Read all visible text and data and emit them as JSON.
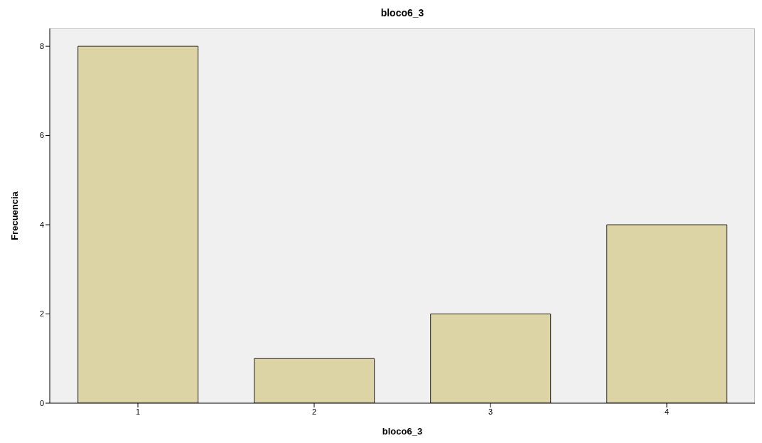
{
  "chart_data": {
    "type": "bar",
    "title": "bloco6_3",
    "xlabel": "bloco6_3",
    "ylabel": "Frecuencia",
    "categories": [
      "1",
      "2",
      "3",
      "4"
    ],
    "values": [
      8,
      1,
      2,
      4
    ],
    "color": "#dcd4a4",
    "ylim": [
      0,
      8.4
    ],
    "yticks": [
      0,
      2,
      4,
      6,
      8
    ],
    "grid": false
  }
}
